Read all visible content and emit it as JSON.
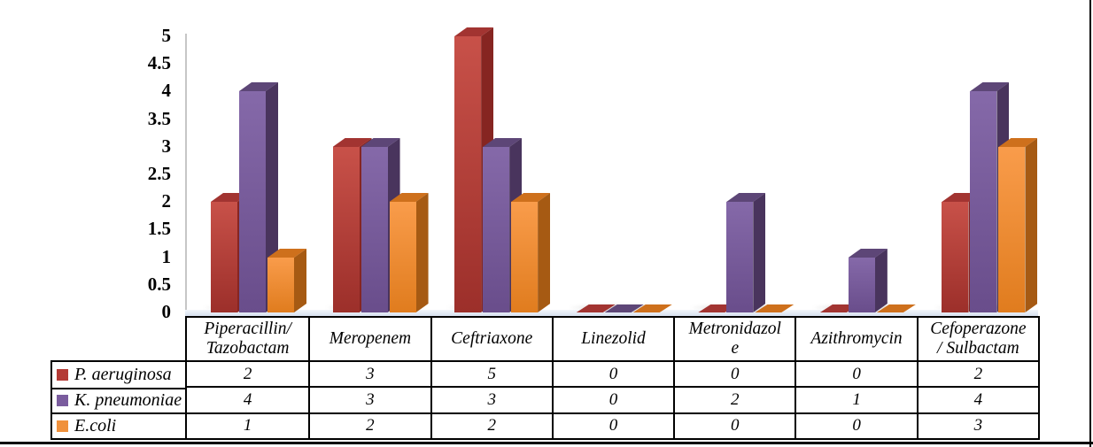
{
  "chart_data": {
    "type": "bar",
    "style": "3d-clustered",
    "title": "",
    "xlabel": "",
    "ylabel": "",
    "grid": false,
    "legend_position": "data-table-left",
    "categories": [
      "Piperacillin/ Tazobactam",
      "Meropenem",
      "Ceftriaxone",
      "Linezolid",
      "Metronidazole",
      "Azithromycin",
      "Cefoperazone / Sulbactam"
    ],
    "category_display_lines": [
      [
        "Piperacillin/",
        "Tazobactam"
      ],
      [
        "Meropenem"
      ],
      [
        "Ceftriaxone"
      ],
      [
        "Linezolid"
      ],
      [
        "Metronidazol",
        "e"
      ],
      [
        "Azithromycin"
      ],
      [
        "Cefoperazone",
        "/ Sulbactam"
      ]
    ],
    "series": [
      {
        "name": "P. aeruginosa",
        "values": [
          2,
          3,
          5,
          0,
          0,
          0,
          2
        ],
        "key_color": "#B43A35",
        "front_gradient": [
          "#C85149",
          "#9C2F2A"
        ],
        "top_color": "#A23431",
        "side_color": "#862521"
      },
      {
        "name": "K. pneumoniae",
        "values": [
          4,
          3,
          3,
          0,
          2,
          1,
          4
        ],
        "key_color": "#7A5C9E",
        "front_gradient": [
          "#8569A9",
          "#694D8B"
        ],
        "top_color": "#5D4677",
        "side_color": "#49345D"
      },
      {
        "name": "E.coli",
        "values": [
          1,
          2,
          2,
          0,
          0,
          0,
          3
        ],
        "key_color": "#F0913C",
        "front_gradient": [
          "#F99C4B",
          "#E07C1E"
        ],
        "top_color": "#CE701C",
        "side_color": "#A65A13"
      }
    ],
    "y_axis": {
      "min": 0,
      "max": 5,
      "step": 0.5,
      "tick_labels": [
        "5",
        "4.5",
        "4",
        "3.5",
        "3",
        "2.5",
        "2",
        "1.5",
        "1",
        "0.5",
        "0"
      ]
    },
    "floor_color": "#E2E9F4",
    "table_border_color": "#000000"
  }
}
